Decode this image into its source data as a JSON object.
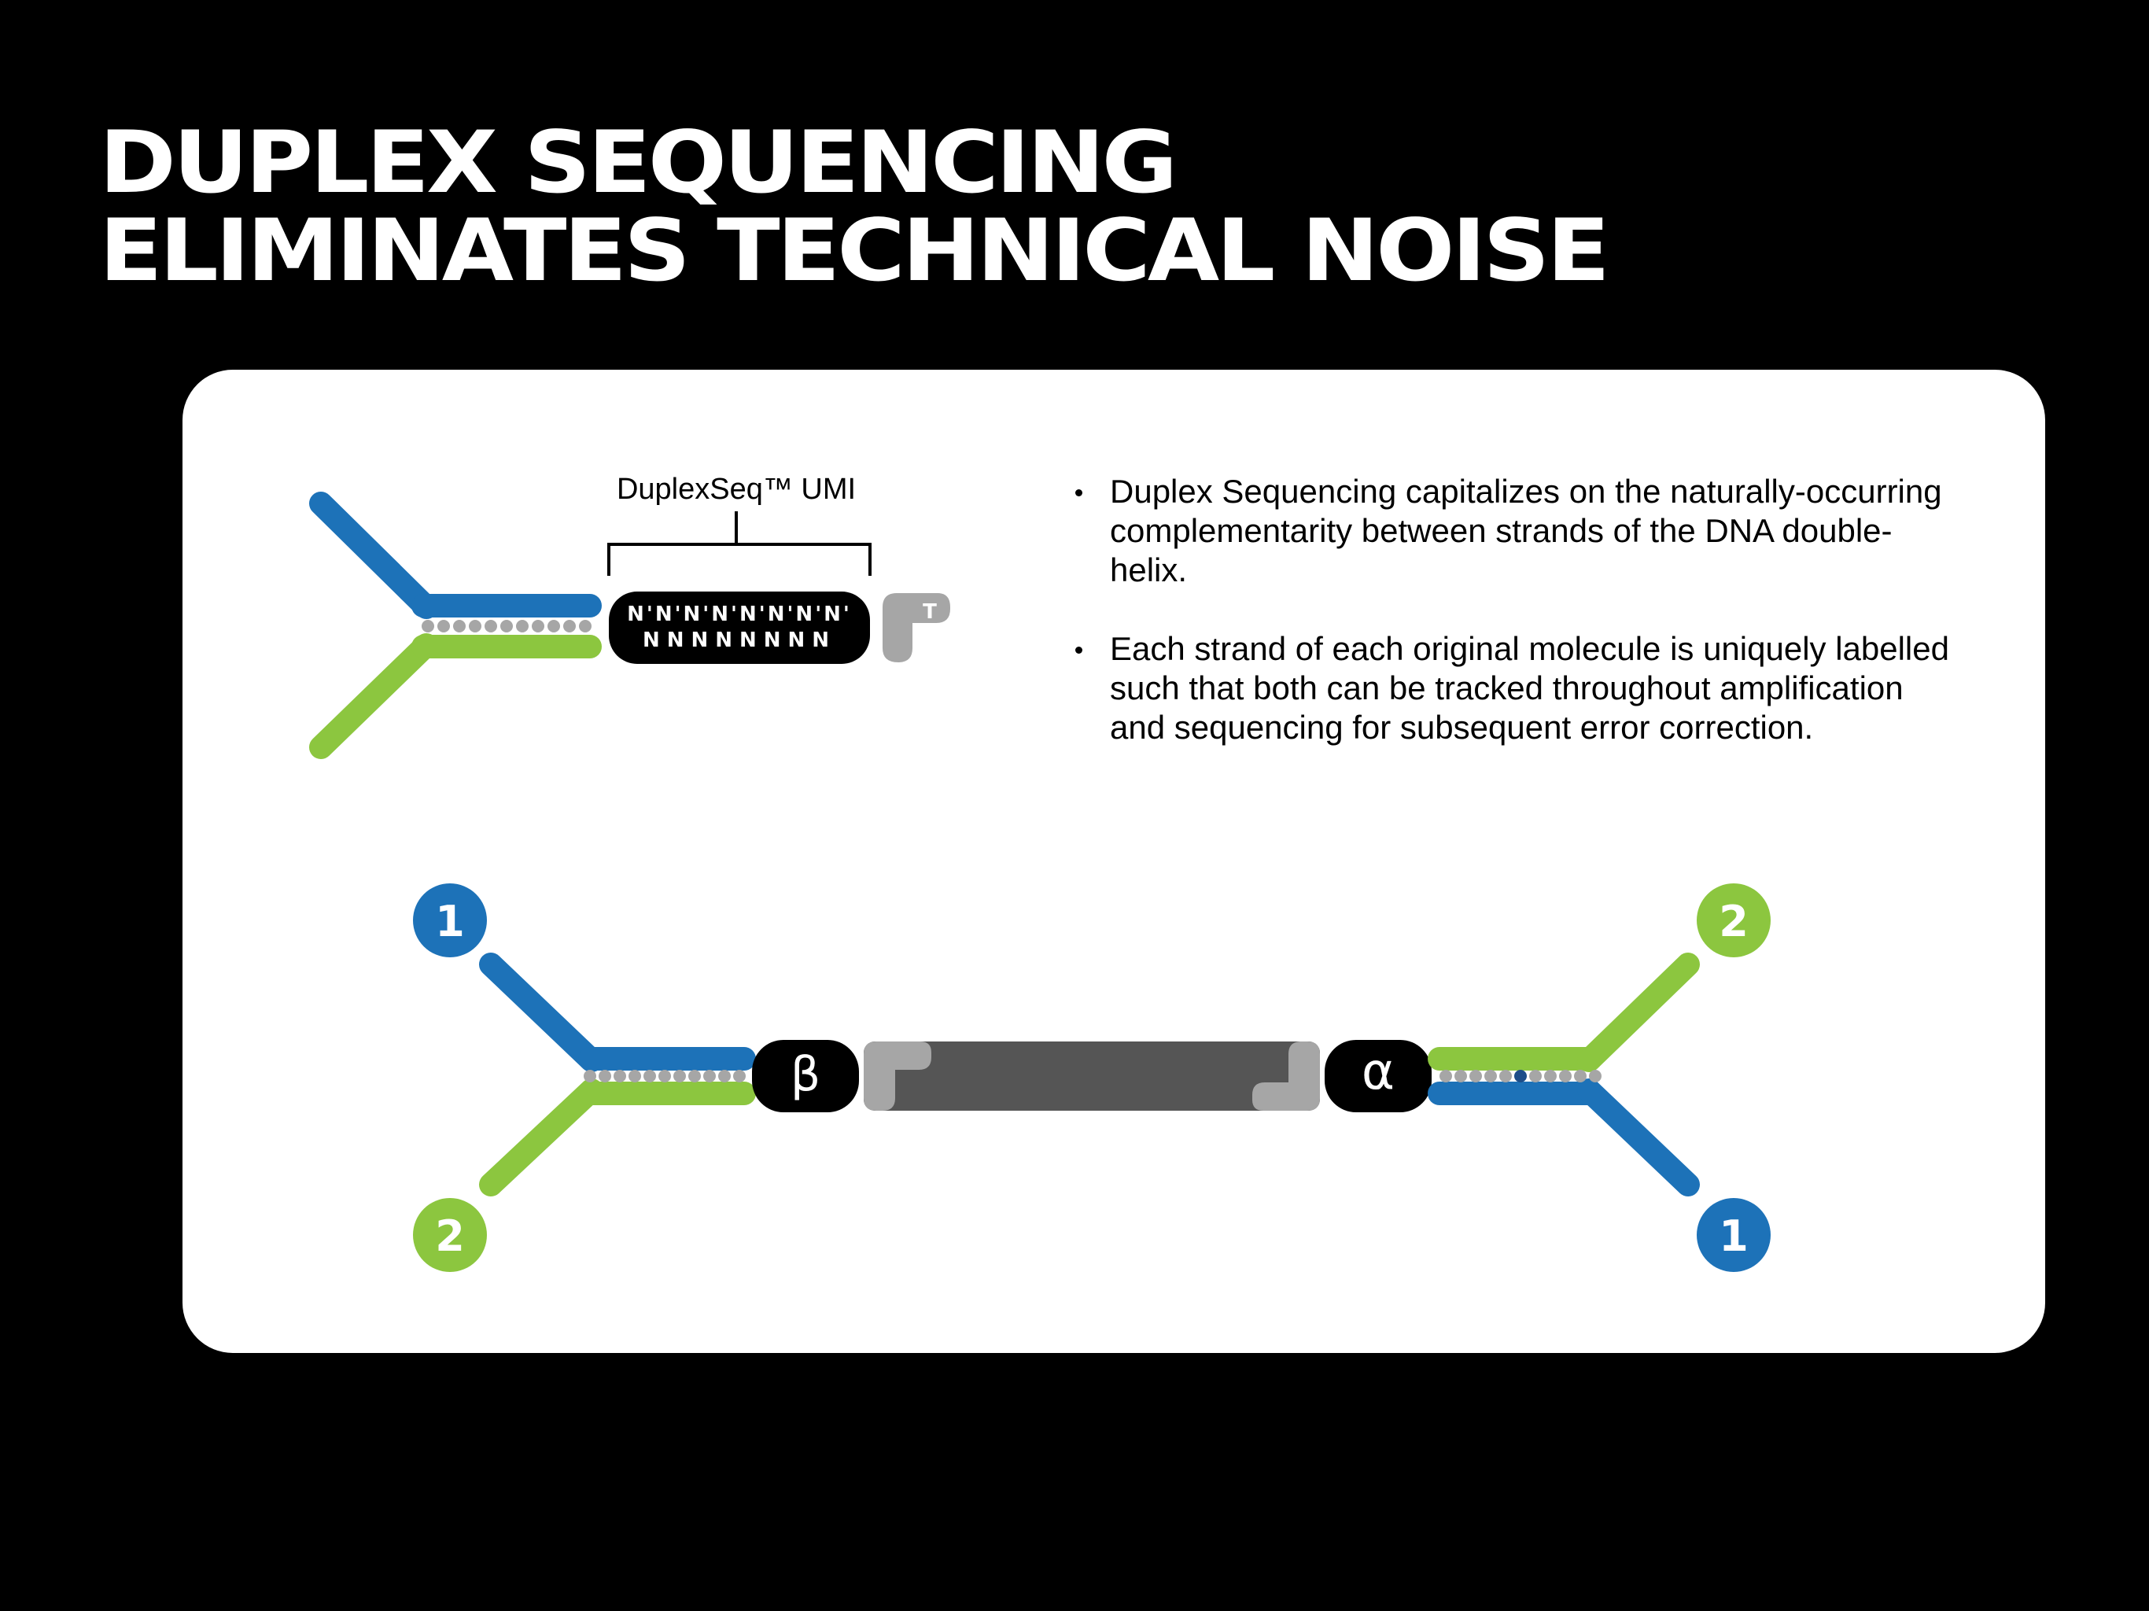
{
  "title": {
    "line1": "DUPLEX SEQUENCING",
    "line2": "ELIMINATES TECHNICAL NOISE"
  },
  "adapter_diagram": {
    "umi_label": "DuplexSeq™ UMI",
    "umi_top": "N'N'N'N'N'N'N'N'",
    "umi_bottom": "NNNNNNNN",
    "t_overhang": "T"
  },
  "bullets": [
    "Duplex Sequencing capitalizes on the naturally-occurring complementarity between strands of the DNA double-helix.",
    "Each strand of each original molecule is uniquely labelled such that both can be tracked throughout amplification and sequencing for subsequent error correction."
  ],
  "molecule_diagram": {
    "left_tag": "β",
    "right_tag": "α",
    "left_top_num": "1",
    "left_bottom_num": "2",
    "right_top_num": "2",
    "right_bottom_num": "1"
  },
  "colors": {
    "blue": "#1d72b8",
    "green": "#8cc63f",
    "dark_gray": "#555555",
    "light_gray": "#a6a6a6",
    "black": "#000000"
  }
}
